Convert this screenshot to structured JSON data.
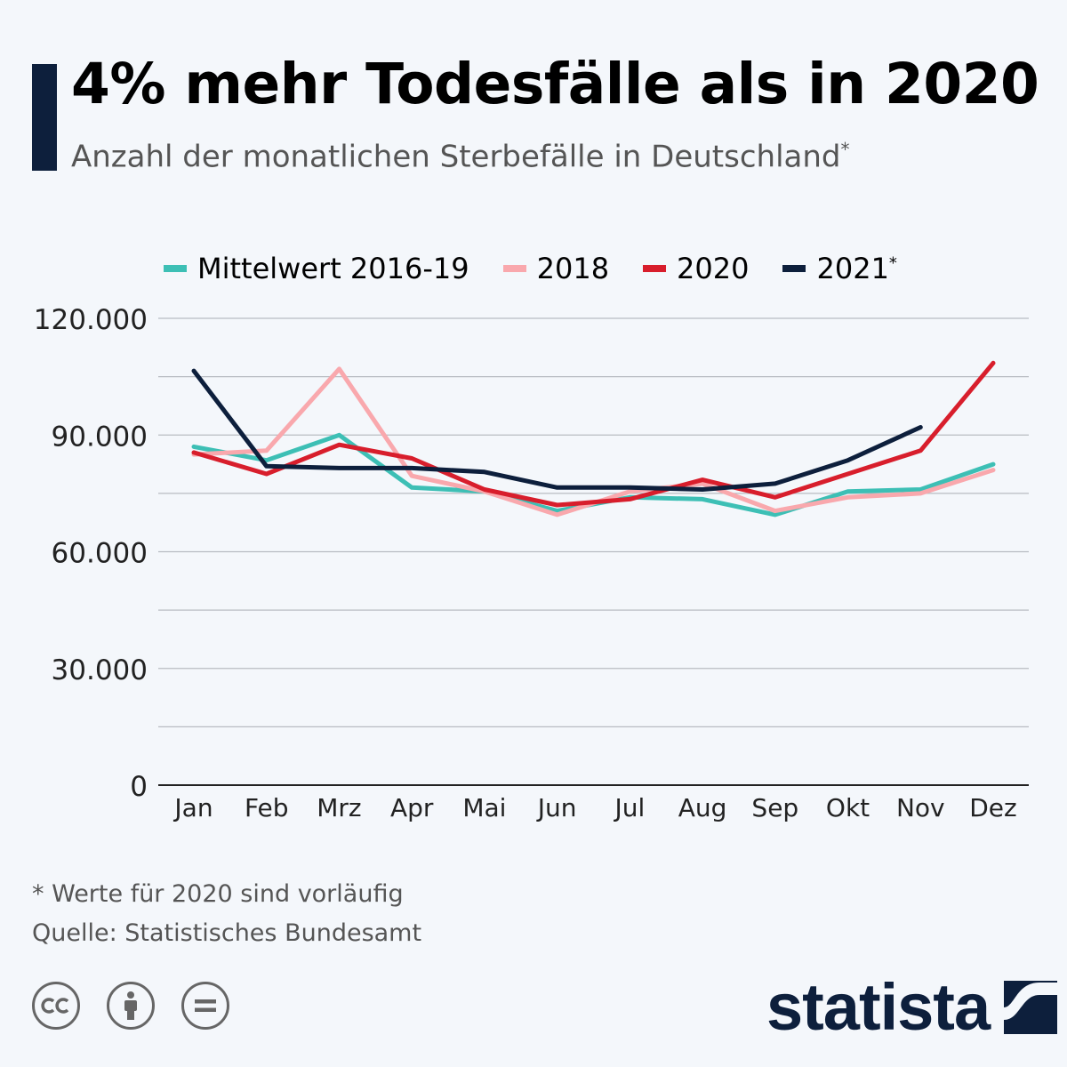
{
  "header": {
    "title": "4% mehr Todesfälle als in 2020",
    "subtitle": "Anzahl der monatlichen Sterbefälle in Deutschland",
    "subtitle_mark": "*"
  },
  "legend": [
    {
      "label": "Mittelwert 2016-19",
      "mark": "",
      "color": "#3dbfb5"
    },
    {
      "label": "2018",
      "mark": "",
      "color": "#f9a8ad"
    },
    {
      "label": "2020",
      "mark": "",
      "color": "#d81e2c"
    },
    {
      "label": "2021",
      "mark": "*",
      "color": "#0d1f3c"
    }
  ],
  "chart_data": {
    "type": "line",
    "title": "4% mehr Todesfälle als in 2020",
    "subtitle": "Anzahl der monatlichen Sterbefälle in Deutschland*",
    "categories": [
      "Jan",
      "Feb",
      "Mrz",
      "Apr",
      "Mai",
      "Jun",
      "Jul",
      "Aug",
      "Sep",
      "Okt",
      "Nov",
      "Dez"
    ],
    "ylim": [
      0,
      120000
    ],
    "yticks": [
      0,
      30000,
      60000,
      90000,
      120000
    ],
    "ytick_labels": [
      "0",
      "30.000",
      "60.000",
      "90.000",
      "120.000"
    ],
    "grid": true,
    "legend_position": "top",
    "series": [
      {
        "name": "Mittelwert 2016-19",
        "color": "#3dbfb5",
        "values": [
          87000,
          83500,
          90000,
          76500,
          75500,
          70500,
          74000,
          73500,
          69500,
          75500,
          76000,
          82500
        ]
      },
      {
        "name": "2018",
        "color": "#f9a8ad",
        "values": [
          85000,
          86000,
          107000,
          79500,
          75500,
          69500,
          75500,
          77500,
          70500,
          74000,
          75000,
          81000
        ]
      },
      {
        "name": "2020",
        "color": "#d81e2c",
        "values": [
          85500,
          80000,
          87500,
          84000,
          76000,
          72000,
          73500,
          78500,
          74000,
          80000,
          86000,
          108500
        ]
      },
      {
        "name": "2021*",
        "color": "#0d1f3c",
        "values": [
          106500,
          82000,
          81500,
          81500,
          80500,
          76500,
          76500,
          76000,
          77500,
          83500,
          92000,
          null
        ]
      }
    ]
  },
  "footer": {
    "note": "* Werte für 2020 sind vorläufig",
    "source": "Quelle: Statistisches Bundesamt",
    "brand": "statista",
    "license_icons": [
      "cc-icon",
      "attribution-icon",
      "no-derivatives-icon"
    ]
  }
}
